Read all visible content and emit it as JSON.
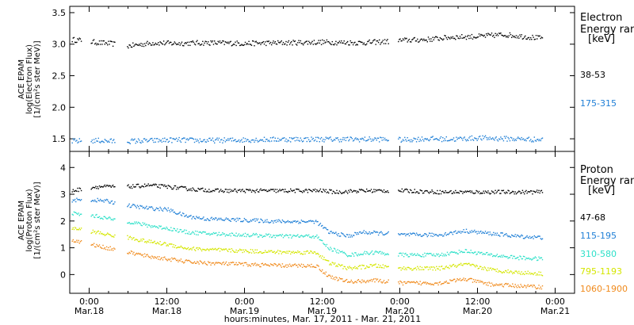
{
  "x_axis": {
    "label": "hours:minutes, Mar. 17, 2011 - Mar. 21, 2011",
    "ticks": [
      {
        "time": "0:00",
        "date": "Mar.18",
        "hours": 0
      },
      {
        "time": "12:00",
        "date": "Mar.18",
        "hours": 12
      },
      {
        "time": "0:00",
        "date": "Mar.19",
        "hours": 24
      },
      {
        "time": "12:00",
        "date": "Mar.19",
        "hours": 36
      },
      {
        "time": "0:00",
        "date": "Mar.20",
        "hours": 48
      },
      {
        "time": "12:00",
        "date": "Mar.20",
        "hours": 60
      },
      {
        "time": "0:00",
        "date": "Mar.21",
        "hours": 72
      }
    ],
    "range_hours": [
      -3,
      75
    ]
  },
  "chart_data": [
    {
      "type": "scatter",
      "panel": "electron",
      "ylabel": [
        "ACE EPAM",
        "log(Electron Flux)",
        "[1/(cm²s ster MeV)]"
      ],
      "ylim": [
        1.3,
        3.6
      ],
      "yticks": [
        "1.5",
        "2.0",
        "2.5",
        "3.0",
        "3.5"
      ],
      "ytick_values": [
        1.5,
        2.0,
        2.5,
        3.0,
        3.5
      ],
      "legend_title": [
        "Electron",
        "Energy ran",
        "[keV]"
      ],
      "x_units": "hours from Mar.18 0:00",
      "series": [
        {
          "name": "38-53",
          "color": "#000000",
          "values": [
            [
              -2.7,
              3.08
            ],
            [
              -1.5,
              3.07
            ],
            [
              1.5,
              3.03
            ],
            [
              3,
              3.02
            ],
            [
              6,
              2.98
            ],
            [
              10,
              3.03
            ],
            [
              13,
              3.02
            ],
            [
              18,
              3.03
            ],
            [
              24,
              3.02
            ],
            [
              30,
              3.03
            ],
            [
              36,
              3.04
            ],
            [
              42,
              3.03
            ],
            [
              46,
              3.05
            ],
            [
              48.5,
              3.07
            ],
            [
              52,
              3.08
            ],
            [
              56,
              3.12
            ],
            [
              60,
              3.13
            ],
            [
              64,
              3.16
            ],
            [
              68,
              3.12
            ],
            [
              70,
              3.1
            ]
          ]
        },
        {
          "name": "175-315",
          "color": "#1f7fd6",
          "values": [
            [
              -2.7,
              1.47
            ],
            [
              1.5,
              1.48
            ],
            [
              3,
              1.47
            ],
            [
              6,
              1.47
            ],
            [
              10,
              1.48
            ],
            [
              13,
              1.49
            ],
            [
              18,
              1.48
            ],
            [
              24,
              1.49
            ],
            [
              30,
              1.5
            ],
            [
              36,
              1.5
            ],
            [
              42,
              1.5
            ],
            [
              46,
              1.5
            ],
            [
              48.5,
              1.49
            ],
            [
              52,
              1.51
            ],
            [
              56,
              1.5
            ],
            [
              60,
              1.52
            ],
            [
              64,
              1.51
            ],
            [
              68,
              1.5
            ],
            [
              70,
              1.49
            ]
          ]
        }
      ]
    },
    {
      "type": "scatter",
      "panel": "proton",
      "ylabel": [
        "ACE EPAM",
        "log(Proton Flux)",
        "[1/(cm²s ster MeV)]"
      ],
      "ylim": [
        -0.7,
        4.6
      ],
      "yticks": [
        "0",
        "1",
        "2",
        "3",
        "4"
      ],
      "ytick_values": [
        0,
        1,
        2,
        3,
        4
      ],
      "legend_title": [
        "Proton",
        "Energy ran",
        "[keV]"
      ],
      "x_units": "hours from Mar.18 0:00",
      "series": [
        {
          "name": "47-68",
          "color": "#000000",
          "values": [
            [
              -2.7,
              3.15
            ],
            [
              1,
              3.3
            ],
            [
              3,
              3.3
            ],
            [
              6,
              3.3
            ],
            [
              9,
              3.35
            ],
            [
              12,
              3.3
            ],
            [
              16,
              3.2
            ],
            [
              20,
              3.15
            ],
            [
              26,
              3.15
            ],
            [
              32,
              3.15
            ],
            [
              36,
              3.15
            ],
            [
              38,
              3.1
            ],
            [
              42,
              3.15
            ],
            [
              46,
              3.15
            ],
            [
              48.5,
              3.15
            ],
            [
              54,
              3.1
            ],
            [
              60,
              3.1
            ],
            [
              66,
              3.1
            ],
            [
              70,
              3.1
            ]
          ]
        },
        {
          "name": "115-195",
          "color": "#1f7fd6",
          "values": [
            [
              -2.7,
              2.8
            ],
            [
              1,
              2.8
            ],
            [
              3,
              2.75
            ],
            [
              6,
              2.6
            ],
            [
              9,
              2.5
            ],
            [
              12,
              2.45
            ],
            [
              15,
              2.2
            ],
            [
              18,
              2.1
            ],
            [
              24,
              2.05
            ],
            [
              30,
              2.0
            ],
            [
              35,
              2.0
            ],
            [
              37,
              1.6
            ],
            [
              40,
              1.45
            ],
            [
              42,
              1.6
            ],
            [
              46,
              1.55
            ],
            [
              48.5,
              1.5
            ],
            [
              54,
              1.5
            ],
            [
              58,
              1.65
            ],
            [
              62,
              1.55
            ],
            [
              66,
              1.45
            ],
            [
              70,
              1.4
            ]
          ]
        },
        {
          "name": "310-580",
          "color": "#2de0c8",
          "values": [
            [
              -2.7,
              2.3
            ],
            [
              1,
              2.2
            ],
            [
              3,
              2.1
            ],
            [
              6,
              2.0
            ],
            [
              9,
              1.85
            ],
            [
              12,
              1.75
            ],
            [
              15,
              1.6
            ],
            [
              18,
              1.55
            ],
            [
              24,
              1.5
            ],
            [
              30,
              1.45
            ],
            [
              35,
              1.45
            ],
            [
              37,
              1.0
            ],
            [
              40,
              0.75
            ],
            [
              44,
              0.85
            ],
            [
              46,
              0.8
            ],
            [
              48.5,
              0.75
            ],
            [
              54,
              0.75
            ],
            [
              58,
              0.9
            ],
            [
              62,
              0.75
            ],
            [
              66,
              0.65
            ],
            [
              70,
              0.6
            ]
          ]
        },
        {
          "name": "795-1193",
          "color": "#d4e600",
          "values": [
            [
              -2.7,
              1.75
            ],
            [
              1,
              1.6
            ],
            [
              3,
              1.5
            ],
            [
              6,
              1.4
            ],
            [
              9,
              1.25
            ],
            [
              12,
              1.15
            ],
            [
              15,
              1.0
            ],
            [
              18,
              0.95
            ],
            [
              24,
              0.9
            ],
            [
              30,
              0.85
            ],
            [
              35,
              0.85
            ],
            [
              37,
              0.45
            ],
            [
              40,
              0.25
            ],
            [
              44,
              0.35
            ],
            [
              46,
              0.3
            ],
            [
              48.5,
              0.25
            ],
            [
              54,
              0.25
            ],
            [
              58,
              0.4
            ],
            [
              62,
              0.2
            ],
            [
              66,
              0.1
            ],
            [
              70,
              0.05
            ]
          ]
        },
        {
          "name": "1060-1900",
          "color": "#f08a1c",
          "values": [
            [
              -2.7,
              1.3
            ],
            [
              1,
              1.1
            ],
            [
              3,
              1.0
            ],
            [
              6,
              0.85
            ],
            [
              9,
              0.7
            ],
            [
              12,
              0.6
            ],
            [
              15,
              0.5
            ],
            [
              18,
              0.45
            ],
            [
              24,
              0.4
            ],
            [
              30,
              0.35
            ],
            [
              35,
              0.35
            ],
            [
              37,
              -0.05
            ],
            [
              40,
              -0.25
            ],
            [
              44,
              -0.2
            ],
            [
              46,
              -0.25
            ],
            [
              48.5,
              -0.3
            ],
            [
              54,
              -0.3
            ],
            [
              58,
              -0.15
            ],
            [
              62,
              -0.35
            ],
            [
              66,
              -0.4
            ],
            [
              70,
              -0.45
            ]
          ]
        }
      ]
    }
  ]
}
